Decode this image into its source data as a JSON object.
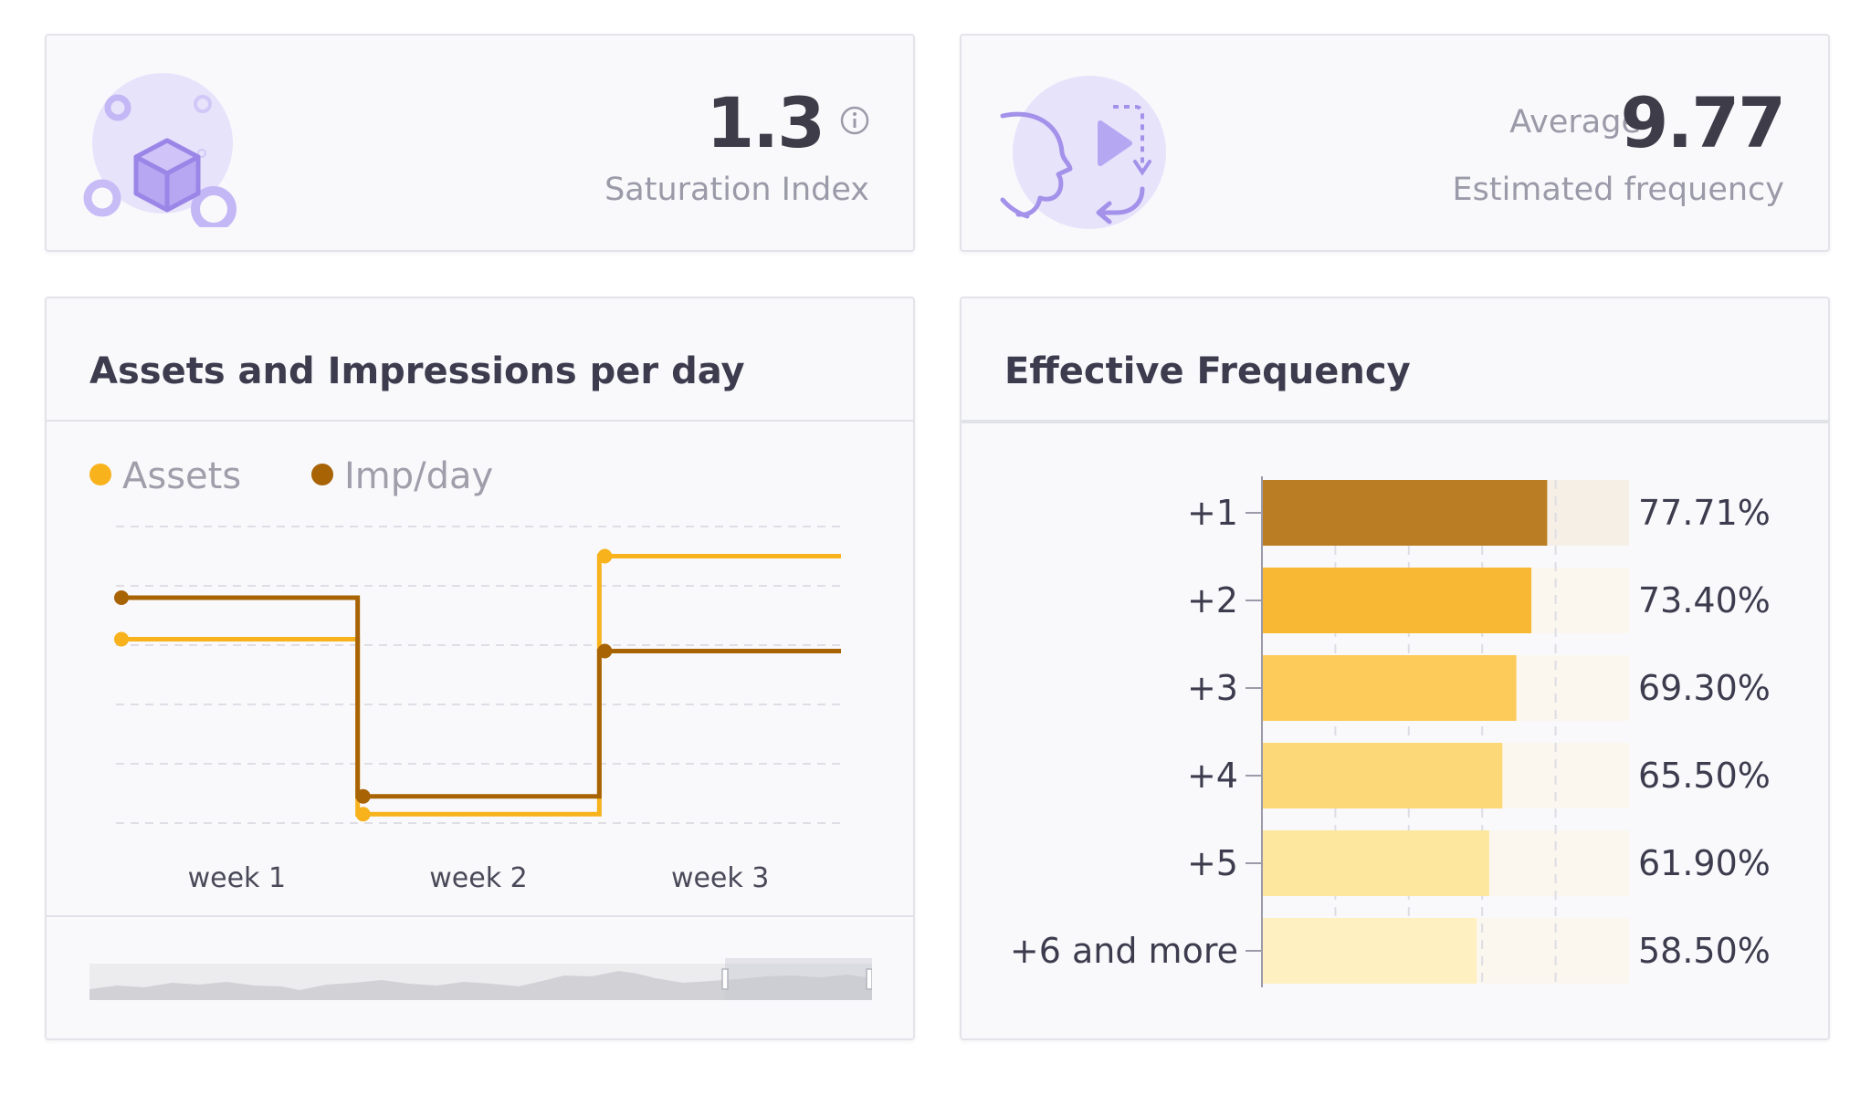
{
  "saturation": {
    "value": "1.3",
    "label": "Saturation Index",
    "icon": "cube-bubbles-icon",
    "info_icon": "info-icon"
  },
  "frequency": {
    "prefix": "Average",
    "value": "9.77",
    "label": "Estimated frequency",
    "icon": "face-play-icon"
  },
  "assets_chart": {
    "title": "Assets and Impressions per day",
    "legend": [
      {
        "label": "Assets",
        "color": "#f7b21c"
      },
      {
        "label": "Imp/day",
        "color": "#a86305"
      }
    ],
    "chart_data": {
      "type": "line",
      "step": true,
      "categories": [
        "week 1",
        "week 2",
        "week 3"
      ],
      "ylim": [
        0,
        5
      ],
      "series": [
        {
          "name": "Assets",
          "color": "#f7b21c",
          "values": [
            3.1,
            0.15,
            4.5
          ]
        },
        {
          "name": "Imp/day",
          "color": "#a86305",
          "values": [
            3.8,
            0.45,
            2.9
          ]
        }
      ]
    }
  },
  "effective": {
    "title": "Effective Frequency",
    "chart_data": {
      "type": "bar",
      "orientation": "horizontal",
      "categories": [
        "+1",
        "+2",
        "+3",
        "+4",
        "+5",
        "+6 and more"
      ],
      "values": [
        77.71,
        73.4,
        69.3,
        65.5,
        61.9,
        58.5
      ],
      "value_labels": [
        "77.71%",
        "73.40%",
        "69.30%",
        "65.50%",
        "61.90%",
        "58.50%"
      ],
      "colors": [
        "#bb7d23",
        "#f9b834",
        "#fdcb59",
        "#fdd878",
        "#fde69d",
        "#fef0c0"
      ],
      "xlim": [
        0,
        100
      ]
    }
  }
}
